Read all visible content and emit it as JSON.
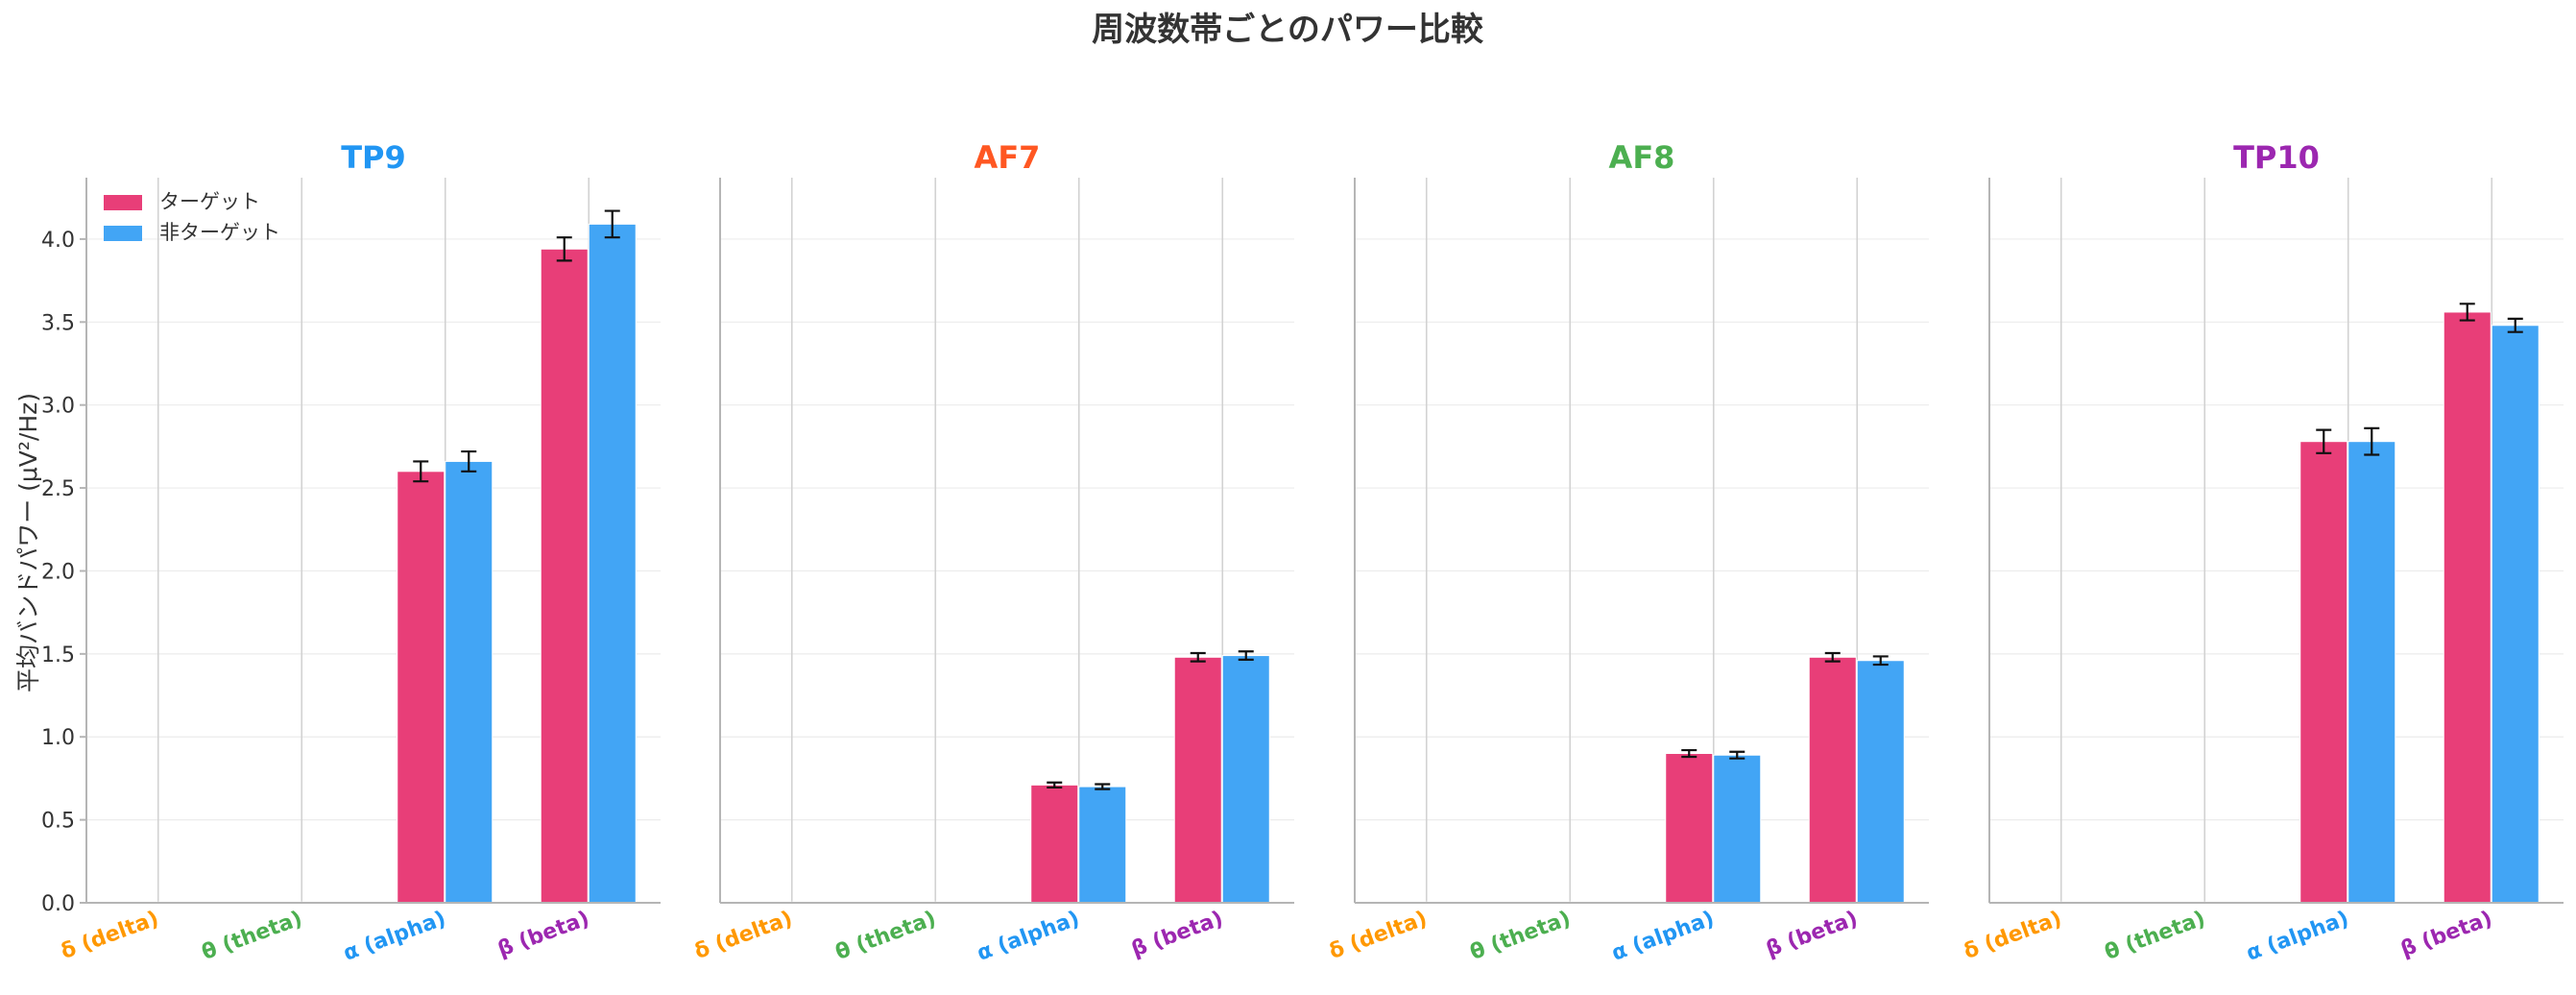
{
  "figure": {
    "title": "周波数帯ごとのパワー比較",
    "ylabel": "平均バンドパワー (μV²/Hz)"
  },
  "legend": {
    "placement": "top-left",
    "items": [
      {
        "label": "ターゲット",
        "color": "#E83E78"
      },
      {
        "label": "非ターゲット",
        "color": "#42A5F5"
      }
    ]
  },
  "chart_data": [
    {
      "type": "bar",
      "title": "TP9",
      "title_color": "#2196F3",
      "categories": [
        "δ (delta)",
        "θ (theta)",
        "α (alpha)",
        "β (beta)"
      ],
      "category_colors": [
        "#FF9800",
        "#4CAF50",
        "#2196F3",
        "#9C27B0"
      ],
      "series": [
        {
          "name": "ターゲット",
          "values": [
            0,
            0,
            2.6,
            3.94
          ],
          "errors": [
            0,
            0,
            0.06,
            0.07
          ]
        },
        {
          "name": "非ターゲット",
          "values": [
            0,
            0,
            2.66,
            4.09
          ],
          "errors": [
            0,
            0,
            0.06,
            0.08
          ]
        }
      ],
      "ylim": [
        0,
        4.37
      ],
      "yticks": [
        "0.0",
        "0.5",
        "1.0",
        "1.5",
        "2.0",
        "2.5",
        "3.0",
        "3.5",
        "4.0"
      ],
      "grid": true
    },
    {
      "type": "bar",
      "title": "AF7",
      "title_color": "#FF5722",
      "categories": [
        "δ (delta)",
        "θ (theta)",
        "α (alpha)",
        "β (beta)"
      ],
      "category_colors": [
        "#FF9800",
        "#4CAF50",
        "#2196F3",
        "#9C27B0"
      ],
      "series": [
        {
          "name": "ターゲット",
          "values": [
            0,
            0,
            0.71,
            1.48
          ],
          "errors": [
            0,
            0,
            0.015,
            0.025
          ]
        },
        {
          "name": "非ターゲット",
          "values": [
            0,
            0,
            0.7,
            1.49
          ],
          "errors": [
            0,
            0,
            0.015,
            0.025
          ]
        }
      ],
      "ylim": [
        0,
        4.37
      ],
      "grid": true
    },
    {
      "type": "bar",
      "title": "AF8",
      "title_color": "#4CAF50",
      "categories": [
        "δ (delta)",
        "θ (theta)",
        "α (alpha)",
        "β (beta)"
      ],
      "category_colors": [
        "#FF9800",
        "#4CAF50",
        "#2196F3",
        "#9C27B0"
      ],
      "series": [
        {
          "name": "ターゲット",
          "values": [
            0,
            0,
            0.9,
            1.48
          ],
          "errors": [
            0,
            0,
            0.02,
            0.025
          ]
        },
        {
          "name": "非ターゲット",
          "values": [
            0,
            0,
            0.89,
            1.46
          ],
          "errors": [
            0,
            0,
            0.02,
            0.025
          ]
        }
      ],
      "ylim": [
        0,
        4.37
      ],
      "grid": true
    },
    {
      "type": "bar",
      "title": "TP10",
      "title_color": "#9C27B0",
      "categories": [
        "δ (delta)",
        "θ (theta)",
        "α (alpha)",
        "β (beta)"
      ],
      "category_colors": [
        "#FF9800",
        "#4CAF50",
        "#2196F3",
        "#9C27B0"
      ],
      "series": [
        {
          "name": "ターゲット",
          "values": [
            0,
            0,
            2.78,
            3.56
          ],
          "errors": [
            0,
            0,
            0.07,
            0.05
          ]
        },
        {
          "name": "非ターゲット",
          "values": [
            0,
            0,
            2.78,
            3.48
          ],
          "errors": [
            0,
            0,
            0.08,
            0.04
          ]
        }
      ],
      "ylim": [
        0,
        4.37
      ],
      "grid": true
    }
  ]
}
